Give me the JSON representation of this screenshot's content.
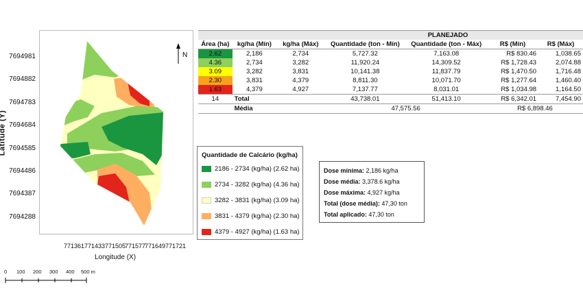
{
  "map": {
    "north_label": "N",
    "y_ticks": [
      "7694981",
      "7694882",
      "7694783",
      "7694684",
      "7694585",
      "7694486",
      "7694387",
      "7694288"
    ],
    "x_ticks": [
      "771361",
      "771433",
      "771505",
      "771577",
      "771649",
      "771721"
    ],
    "y_axis_title": "Latitude  (Y)",
    "x_axis_title": "Longitude (X)",
    "colors": {
      "c1": "#1a9641",
      "c2": "#8dd05c",
      "c3": "#ffffc0",
      "c4": "#fdae61",
      "c5": "#e3241b"
    },
    "scale_labels": [
      "0",
      "100",
      "200",
      "300",
      "400",
      "500 m"
    ]
  },
  "table": {
    "group_header": "PLANEJADO",
    "headers": [
      "Área (ha)",
      "kg/ha (Mín)",
      "kg/ha (Máx)",
      "Quantidade (ton - Mín)",
      "Quantidade (ton - Máx)",
      "R$ (Mín)",
      "R$ (Máx)"
    ],
    "rows": [
      {
        "area": "2.62",
        "kmin": "2,186",
        "kmax": "2,734",
        "qmin": "5,727.32",
        "qmax": "7,163.08",
        "rmin": "R$ 830.46",
        "rmax": "1,038.65",
        "color": "#1a9641"
      },
      {
        "area": "4.36",
        "kmin": "2,734",
        "kmax": "3,282",
        "qmin": "11,920.24",
        "qmax": "14,309.52",
        "rmin": "R$ 1,728.43",
        "rmax": "2,074.88",
        "color": "#8dd05c"
      },
      {
        "area": "3.09",
        "kmin": "3,282",
        "kmax": "3,831",
        "qmin": "10,141.38",
        "qmax": "11,837.79",
        "rmin": "R$ 1,470.50",
        "rmax": "1,716.48",
        "color": "#ffff00"
      },
      {
        "area": "2.30",
        "kmin": "3,831",
        "kmax": "4,379",
        "qmin": "8,811.30",
        "qmax": "10,071.70",
        "rmin": "R$ 1,277.64",
        "rmax": "1,460.40",
        "color": "#f7a21b"
      },
      {
        "area": "1.63",
        "kmin": "4,379",
        "kmax": "4,927",
        "qmin": "7,137.77",
        "qmax": "8,031.01",
        "rmin": "R$ 1,034.98",
        "rmax": "1,164.50",
        "color": "#e3241b"
      }
    ],
    "total_area": "14",
    "total_label": "Total",
    "total_qmin": "43,738.01",
    "total_qmax": "51,413.10",
    "total_rmin": "R$ 6,342.01",
    "total_rmax": "7,454.90",
    "media_label": "Média",
    "media_q": "47,575.56",
    "media_r": "R$ 6,898.46"
  },
  "legend": {
    "title": "Quantidade de Calcário (kg/ha)",
    "items": [
      {
        "label": "2186 - 2734 (kg/ha) (2.62 ha)",
        "color": "#1a9641"
      },
      {
        "label": "2734 - 3282 (kg/ha) (4.36 ha)",
        "color": "#8dd05c"
      },
      {
        "label": "3282 - 3831 (kg/ha) (3.09 ha)",
        "color": "#ffffc0"
      },
      {
        "label": "3831 - 4379 (kg/ha) (2.30 ha)",
        "color": "#fdae61"
      },
      {
        "label": "4379 - 4927 (kg/ha) (1.63 ha)",
        "color": "#e3241b"
      }
    ]
  },
  "stats": {
    "min_label": "Dose mínima:",
    "min_value": "2,186 kg/ha",
    "avg_label": "Dose média:",
    "avg_value": "3,378.6 kg/ha",
    "max_label": "Dose máxima:",
    "max_value": "4,927 kg/ha",
    "total_avg_label": "Total (dose média):",
    "total_avg_value": "47,30 ton",
    "total_applied_label": "Total aplicado:",
    "total_applied_value": "47,30 ton"
  }
}
